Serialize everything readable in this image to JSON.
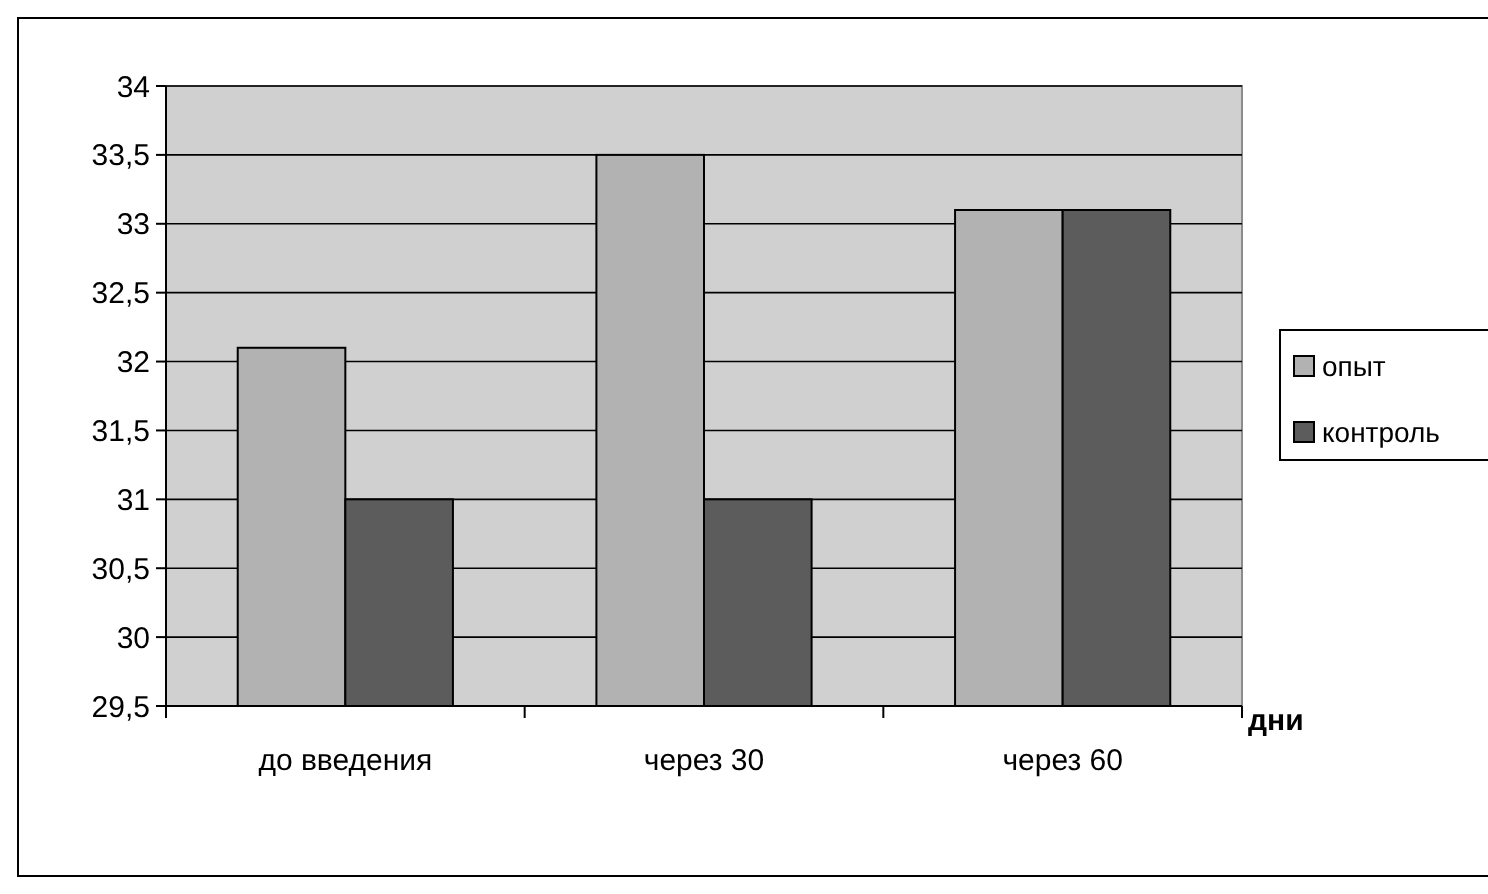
{
  "chart_data": {
    "type": "bar",
    "xlabel": "дни",
    "categories": [
      "до введения",
      "через 30",
      "через 60"
    ],
    "series": [
      {
        "name": "опыт",
        "color": "#b2b2b2",
        "values": [
          32.1,
          33.5,
          33.1
        ]
      },
      {
        "name": "контроль",
        "color": "#5c5c5c",
        "values": [
          31,
          31,
          33.1
        ]
      }
    ],
    "ylim": [
      29.5,
      34
    ],
    "yticks": [
      {
        "value": 29.5,
        "label": "29,5"
      },
      30,
      {
        "value": 30.5,
        "label": "30,5"
      },
      31,
      {
        "value": 31.5,
        "label": "31,5"
      },
      32,
      {
        "value": 32.5,
        "label": "32,5"
      },
      33,
      {
        "value": 33.5,
        "label": "33,5"
      },
      34
    ],
    "grid": "y",
    "legend": "right"
  }
}
